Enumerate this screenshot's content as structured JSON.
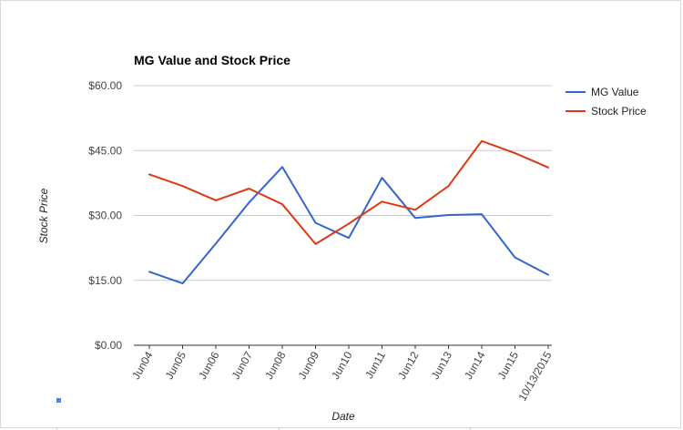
{
  "chart_data": {
    "type": "line",
    "title": "MG Value and Stock Price",
    "xlabel": "Date",
    "ylabel": "Stock Price",
    "categories": [
      "Jun04",
      "Jun05",
      "Jun06",
      "Jun07",
      "Jun08",
      "Jun09",
      "Jun10",
      "Jun11",
      "Jun12",
      "Jun13",
      "Jun14",
      "Jun15",
      "10/13/2015"
    ],
    "series": [
      {
        "name": "MG Value",
        "color": "#3366cc",
        "values": [
          17.0,
          14.3,
          23.5,
          33.0,
          41.2,
          28.3,
          24.8,
          38.7,
          29.4,
          30.1,
          30.3,
          20.3,
          16.3
        ]
      },
      {
        "name": "Stock Price",
        "color": "#dc3912",
        "values": [
          39.5,
          36.8,
          33.5,
          36.2,
          32.6,
          23.4,
          28.1,
          33.2,
          31.3,
          36.8,
          47.2,
          44.4,
          41.1
        ]
      }
    ],
    "ylim": [
      0,
      60
    ],
    "yticks": [
      {
        "value": 0,
        "label": "$0.00"
      },
      {
        "value": 15,
        "label": "$15.00"
      },
      {
        "value": 30,
        "label": "$30.00"
      },
      {
        "value": 45,
        "label": "$45.00"
      },
      {
        "value": 60,
        "label": "$60.00"
      }
    ],
    "grid": true,
    "legend_position": "right"
  }
}
